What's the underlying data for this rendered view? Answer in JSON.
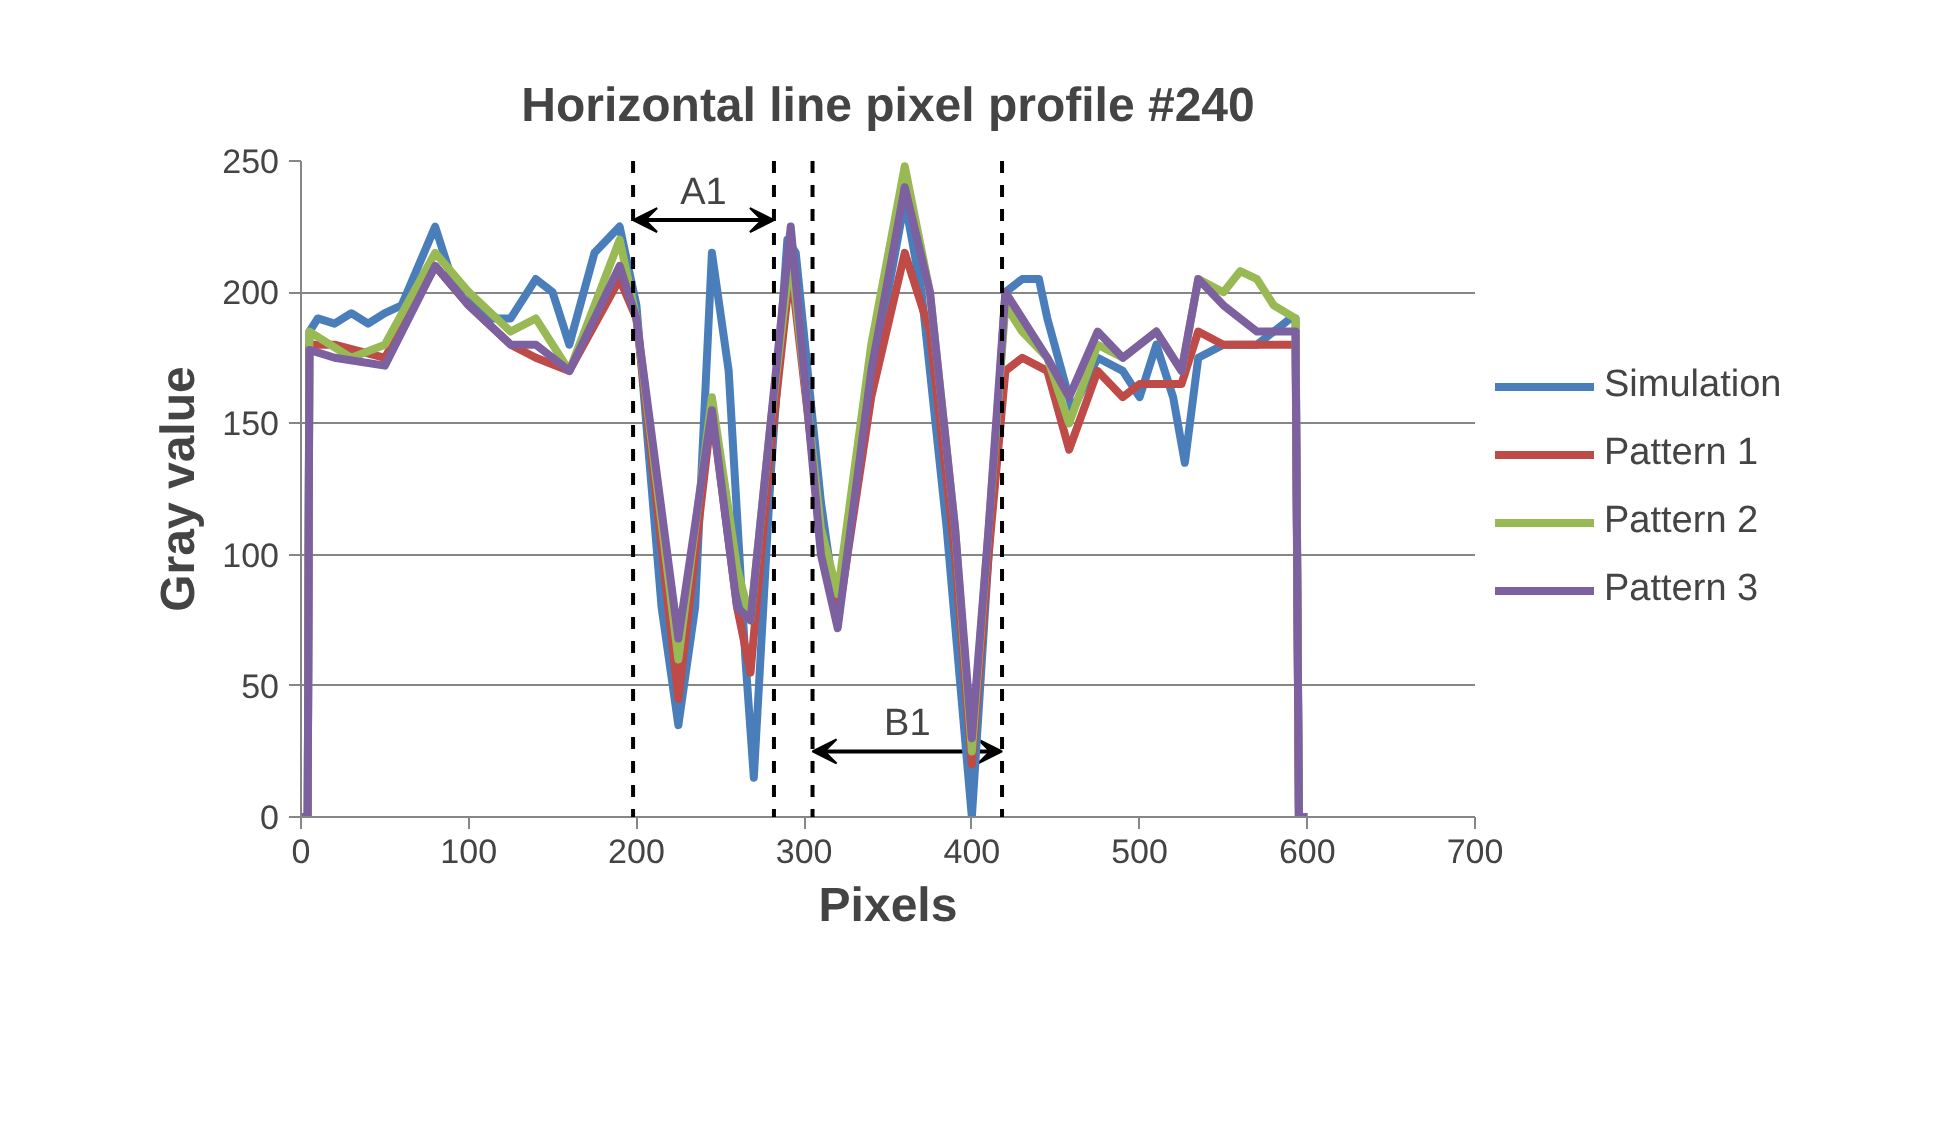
{
  "chart_data": {
    "type": "line",
    "title": "Horizontal line pixel profile #240",
    "xlabel": "Pixels",
    "ylabel": "Gray value",
    "xlim": [
      0,
      700
    ],
    "xticks": [
      0,
      100,
      200,
      300,
      400,
      500,
      600,
      700
    ],
    "ylim": [
      0,
      250
    ],
    "yticks": [
      0,
      50,
      100,
      150,
      200,
      250
    ],
    "grid": "y",
    "legend": "right",
    "marker": "none",
    "line_style": "solid",
    "series": [
      {
        "name": "Simulation",
        "color": "#4a7ebb",
        "x": [
          0,
          4,
          5,
          10,
          20,
          30,
          40,
          50,
          60,
          80,
          90,
          100,
          110,
          125,
          140,
          150,
          160,
          175,
          190,
          200,
          215,
          225,
          235,
          245,
          255,
          265,
          270,
          280,
          290,
          295,
          310,
          320,
          335,
          350,
          360,
          370,
          385,
          400,
          410,
          420,
          430,
          440,
          445,
          460,
          475,
          490,
          500,
          510,
          520,
          527,
          535,
          550,
          570,
          590,
          593,
          595,
          600
        ],
        "values": [
          0,
          0,
          185,
          190,
          188,
          192,
          188,
          192,
          195,
          225,
          205,
          200,
          190,
          190,
          205,
          200,
          180,
          215,
          225,
          195,
          80,
          35,
          80,
          215,
          170,
          60,
          15,
          130,
          220,
          215,
          120,
          75,
          150,
          200,
          235,
          200,
          110,
          0,
          100,
          200,
          205,
          205,
          190,
          155,
          175,
          170,
          160,
          180,
          160,
          135,
          175,
          180,
          180,
          190,
          190,
          0,
          0
        ]
      },
      {
        "name": "Pattern 1",
        "color": "#be4b48",
        "x": [
          0,
          4,
          5,
          20,
          50,
          80,
          100,
          125,
          140,
          160,
          190,
          200,
          225,
          245,
          260,
          268,
          280,
          292,
          310,
          320,
          340,
          360,
          375,
          390,
          400,
          410,
          420,
          430,
          445,
          458,
          475,
          490,
          500,
          510,
          525,
          535,
          550,
          570,
          590,
          593,
          595,
          600
        ],
        "values": [
          0,
          0,
          180,
          180,
          175,
          210,
          195,
          180,
          175,
          170,
          205,
          190,
          45,
          155,
          80,
          55,
          140,
          210,
          110,
          75,
          160,
          215,
          185,
          100,
          20,
          100,
          170,
          175,
          170,
          140,
          170,
          160,
          165,
          165,
          165,
          185,
          180,
          180,
          180,
          180,
          0,
          0
        ]
      },
      {
        "name": "Pattern 2",
        "color": "#98b954",
        "x": [
          0,
          4,
          5,
          30,
          50,
          80,
          100,
          125,
          140,
          160,
          190,
          200,
          225,
          245,
          260,
          268,
          280,
          292,
          310,
          320,
          340,
          360,
          375,
          390,
          400,
          410,
          420,
          430,
          445,
          458,
          475,
          490,
          510,
          525,
          535,
          550,
          560,
          570,
          580,
          593,
          595,
          600
        ],
        "values": [
          0,
          0,
          185,
          175,
          180,
          215,
          200,
          185,
          190,
          170,
          220,
          190,
          60,
          160,
          95,
          75,
          150,
          215,
          110,
          85,
          180,
          248,
          200,
          110,
          25,
          110,
          195,
          185,
          175,
          150,
          180,
          175,
          185,
          170,
          205,
          200,
          208,
          205,
          195,
          190,
          0,
          0
        ]
      },
      {
        "name": "Pattern 3",
        "color": "#7d60a0",
        "x": [
          0,
          4,
          5,
          20,
          50,
          80,
          100,
          125,
          140,
          160,
          190,
          200,
          225,
          245,
          260,
          268,
          280,
          292,
          310,
          320,
          340,
          360,
          375,
          390,
          400,
          410,
          420,
          430,
          445,
          458,
          475,
          490,
          510,
          525,
          535,
          550,
          570,
          593,
          595,
          600
        ],
        "values": [
          0,
          0,
          178,
          175,
          172,
          210,
          195,
          180,
          180,
          170,
          210,
          190,
          68,
          155,
          80,
          75,
          150,
          225,
          100,
          72,
          170,
          240,
          200,
          110,
          30,
          110,
          200,
          190,
          175,
          160,
          185,
          175,
          185,
          170,
          205,
          195,
          185,
          185,
          0,
          0
        ]
      }
    ],
    "ref_lines": [
      {
        "axis": "x",
        "value": 198,
        "label": null,
        "line_style": "dashed",
        "color": "#000000"
      },
      {
        "axis": "x",
        "value": 282,
        "label": null,
        "line_style": "dashed",
        "color": "#000000"
      },
      {
        "axis": "x",
        "value": 305,
        "label": null,
        "line_style": "dashed",
        "color": "#000000"
      },
      {
        "axis": "x",
        "value": 418,
        "label": null,
        "line_style": "dashed",
        "color": "#000000"
      }
    ],
    "annotations": [
      "A1",
      "B1"
    ]
  }
}
